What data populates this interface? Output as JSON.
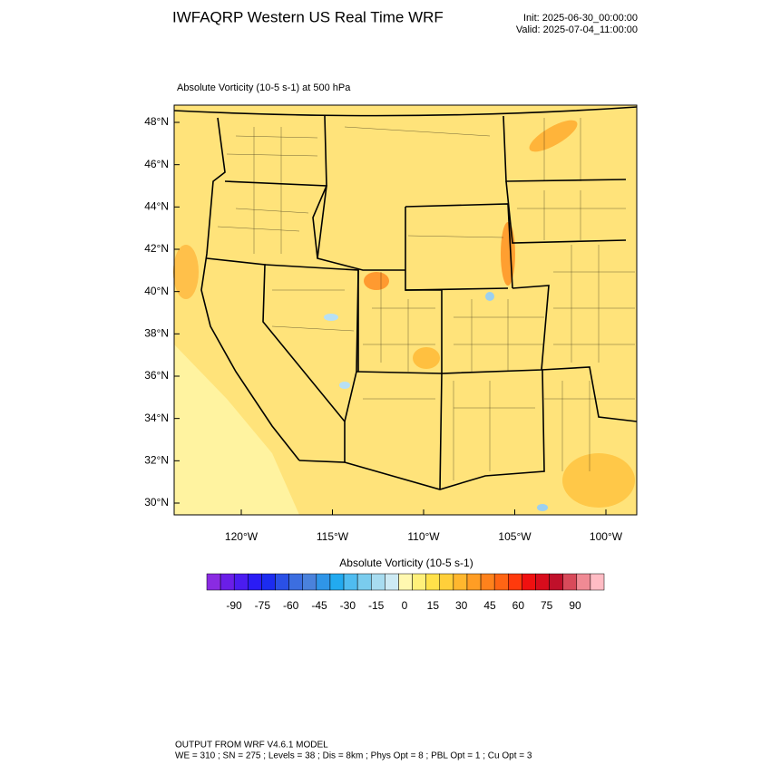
{
  "header": {
    "title": "IWFAQRP Western US Real Time WRF",
    "init": "Init: 2025-06-30_00:00:00",
    "valid": "Valid: 2025-07-04_11:00:00"
  },
  "map": {
    "subtitle": "Absolute Vorticity   (10-5 s-1)     at   500 hPa",
    "lat_labels": [
      "48°N",
      "46°N",
      "44°N",
      "42°N",
      "40°N",
      "38°N",
      "36°N",
      "34°N",
      "32°N",
      "30°N"
    ],
    "lon_labels": [
      "120°W",
      "115°W",
      "110°W",
      "105°W",
      "100°W"
    ]
  },
  "colorbar": {
    "title": "Absolute Vorticity  (10-5 s-1)",
    "labels": [
      -90,
      -75,
      -60,
      -45,
      -30,
      -15,
      0,
      15,
      30,
      45,
      60,
      75,
      90
    ],
    "colors": [
      "#8a2be2",
      "#6a1ee8",
      "#4b1cf0",
      "#2a1cf5",
      "#1c2cf0",
      "#2a50e6",
      "#3c6ee0",
      "#4a82dc",
      "#2f95e8",
      "#22aaf0",
      "#4fbcf0",
      "#7accee",
      "#a8dcf0",
      "#cdeaf4",
      "#fff8b0",
      "#fff07a",
      "#ffe14a",
      "#ffcf3a",
      "#ffb72e",
      "#ff9d24",
      "#ff821c",
      "#ff6514",
      "#ff3a0c",
      "#f01010",
      "#d80c1c",
      "#c0102a",
      "#d84a5a",
      "#f08a94",
      "#ffbcc4"
    ]
  },
  "footer": {
    "line1": "OUTPUT FROM WRF V4.6.1 MODEL",
    "line2": "WE = 310 ; SN = 275 ; Levels = 38 ; Dis = 8km ; Phys Opt = 8 ; PBL Opt = 1 ; Cu Opt = 3"
  }
}
